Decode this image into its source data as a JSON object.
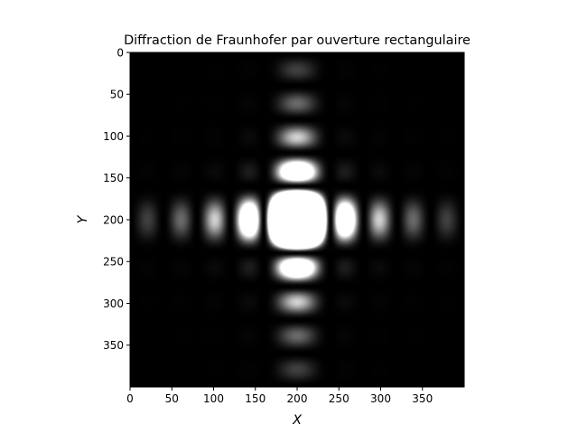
{
  "chart_data": {
    "type": "heatmap",
    "title": "Diffraction de Fraunhofer par ouverture rectangulaire",
    "xlabel": "X",
    "ylabel": "Y",
    "colormap": "gray",
    "xlim": [
      0,
      400
    ],
    "ylim": [
      400,
      0
    ],
    "grid": false,
    "x_ticks": [
      0,
      50,
      100,
      150,
      200,
      250,
      300,
      350
    ],
    "y_ticks": [
      0,
      50,
      100,
      150,
      200,
      250,
      300,
      350
    ],
    "center": [
      200,
      200
    ],
    "intensity_model": "sinc^2(x) * sinc^2(y), saturated",
    "x_zero_spacing": 40,
    "y_zero_spacing": 40,
    "saturation": 0.02
  },
  "colors": {
    "background": "#ffffff",
    "axis": "#000000"
  }
}
